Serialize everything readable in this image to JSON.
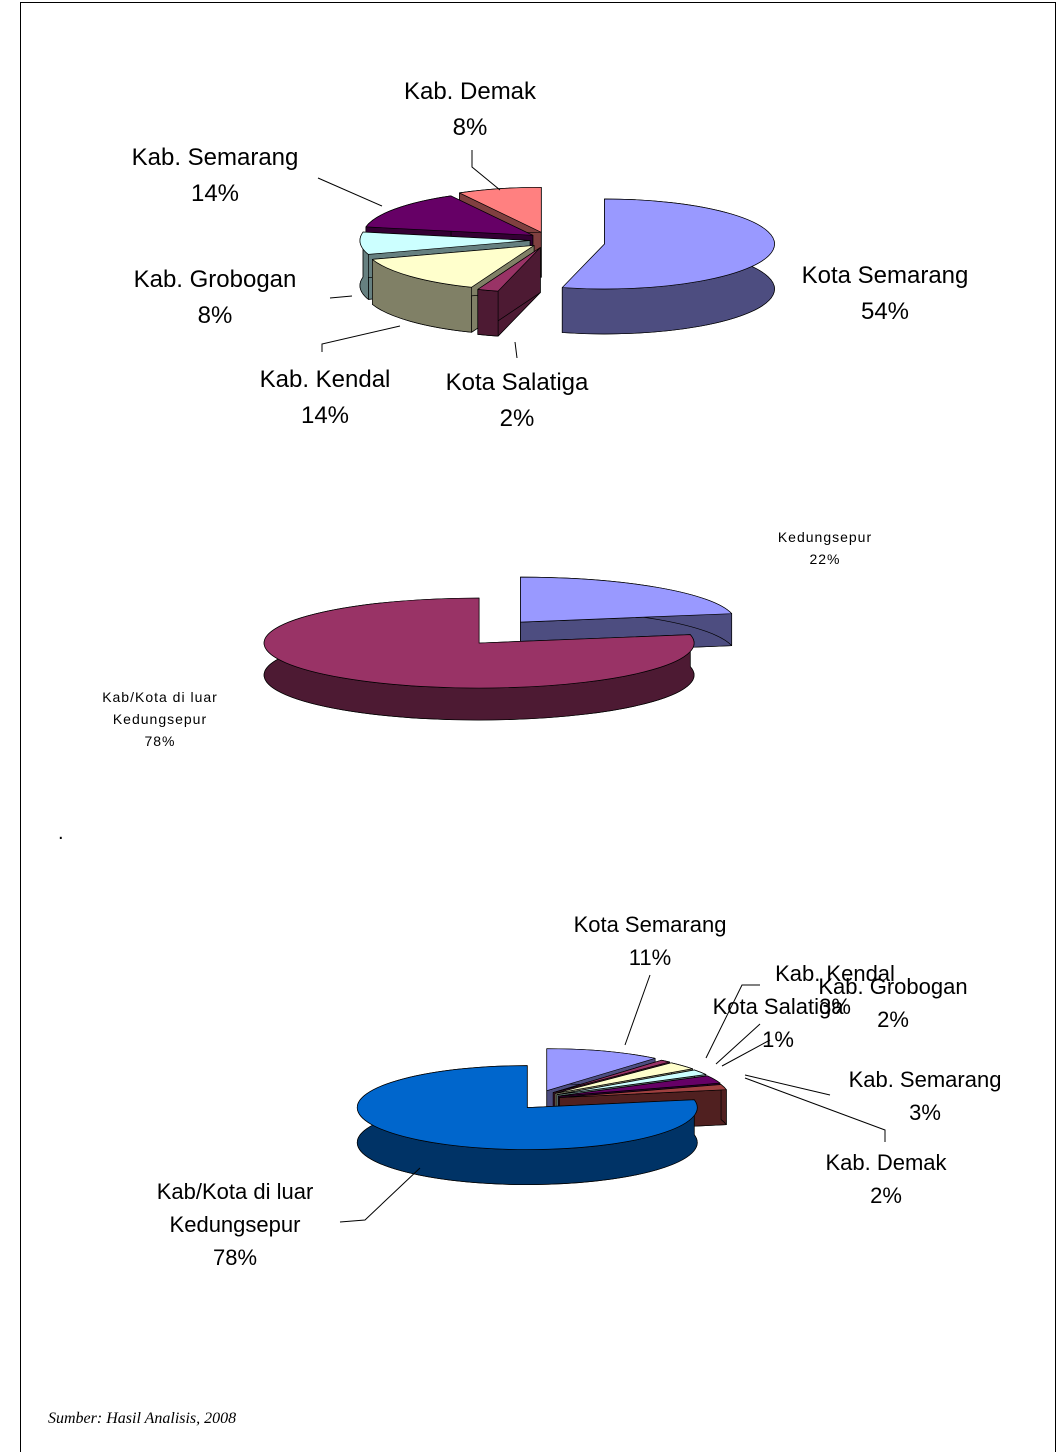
{
  "chart_data": [
    {
      "type": "pie",
      "categories": [
        "Kota Semarang",
        "Kota Salatiga",
        "Kab. Kendal",
        "Kab. Grobogan",
        "Kab. Semarang",
        "Kab. Demak"
      ],
      "values": [
        54,
        2,
        14,
        8,
        14,
        8
      ],
      "value_labels": [
        "54%",
        "2%",
        "14%",
        "8%",
        "14%",
        "8%"
      ],
      "colors": [
        "#9999ff",
        "#993366",
        "#ffffcc",
        "#ccffff",
        "#660066",
        "#ff8080"
      ]
    },
    {
      "type": "pie",
      "categories": [
        "Kedungsepur",
        "Kab/Kota di luar Kedungsepur"
      ],
      "values": [
        22,
        78
      ],
      "value_labels": [
        "22%",
        "78%"
      ],
      "colors": [
        "#9999ff",
        "#993366"
      ]
    },
    {
      "type": "pie",
      "categories": [
        "Kota Semarang",
        "Kota Salatiga",
        "Kab. Kendal",
        "Kab. Grobogan",
        "Kab. Semarang",
        "Kab. Demak",
        "Kab/Kota di luar Kedungsepur"
      ],
      "values": [
        11,
        1,
        3,
        2,
        3,
        2,
        78
      ],
      "value_labels": [
        "11%",
        "1%",
        "3%",
        "2%",
        "3%",
        "2%",
        "78%"
      ],
      "colors": [
        "#9999ff",
        "#993366",
        "#ffffcc",
        "#ccffff",
        "#660066",
        "#a04040",
        "#0066cc"
      ]
    }
  ],
  "note": ".",
  "source": "Sumber: Hasil Analisis, 2008"
}
